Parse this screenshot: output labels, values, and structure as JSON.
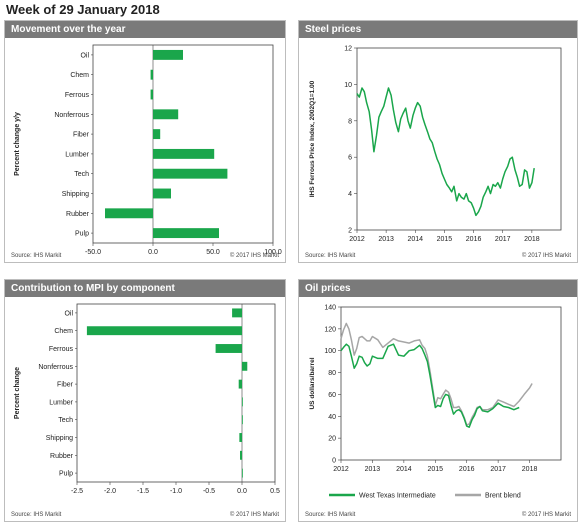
{
  "page": {
    "title": "Week of 29 January 2018"
  },
  "colors": {
    "green": "#1aa64b",
    "gray": "#a6a6a6",
    "header": "#7a7a7a"
  },
  "panels": [
    {
      "id": "p1",
      "title": "Movement over the year",
      "source": "Source: IHS Markit",
      "copyright": "© 2017 IHS Markit"
    },
    {
      "id": "p2",
      "title": "Steel prices",
      "source": "Source: IHS Markit",
      "copyright": "© 2017 IHS Markit"
    },
    {
      "id": "p3",
      "title": "Contribution  to MPI by component",
      "source": "Source: IHS Markit",
      "copyright": "© 2017 IHS Markit"
    },
    {
      "id": "p4",
      "title": "Oil  prices",
      "source": "Source: IHS Markit",
      "copyright": "© 2017 IHS Markit"
    }
  ],
  "chart_data": [
    {
      "type": "bar",
      "orientation": "horizontal",
      "title": "Movement over the year",
      "ylabel": "Percent change y/y",
      "xlim": [
        -50,
        100
      ],
      "xticks": [
        -50,
        0,
        50,
        100
      ],
      "xtick_labels": [
        "-50.0",
        "0.0",
        "50.0",
        "100.0"
      ],
      "categories": [
        "Oil",
        "Chem",
        "Ferrous",
        "Nonferrous",
        "Fiber",
        "Lumber",
        "Tech",
        "Shipping",
        "Rubber",
        "Pulp"
      ],
      "values": [
        25,
        -2,
        -2,
        21,
        6,
        51,
        62,
        15,
        -40,
        55
      ],
      "grid": false
    },
    {
      "type": "line",
      "title": "Steel prices",
      "ylabel": "IHS Ferrous Price Index, 2002Q1=1.00",
      "xlim": [
        2012,
        2019
      ],
      "xticks": [
        2012,
        2013,
        2014,
        2015,
        2016,
        2017,
        2018
      ],
      "ylim": [
        2,
        12
      ],
      "yticks": [
        2,
        4,
        6,
        8,
        10,
        12
      ],
      "series": [
        {
          "x": [
            2012.0,
            2012.08,
            2012.17,
            2012.25,
            2012.33,
            2012.42,
            2012.5,
            2012.58,
            2012.67,
            2012.75,
            2012.83,
            2012.92,
            2013.0,
            2013.08,
            2013.17,
            2013.25,
            2013.33,
            2013.42,
            2013.5,
            2013.58,
            2013.67,
            2013.75,
            2013.83,
            2013.92,
            2014.0,
            2014.08,
            2014.17,
            2014.25,
            2014.33,
            2014.42,
            2014.5,
            2014.58,
            2014.67,
            2014.75,
            2014.83,
            2014.92,
            2015.0,
            2015.08,
            2015.17,
            2015.25,
            2015.33,
            2015.42,
            2015.5,
            2015.58,
            2015.67,
            2015.75,
            2015.83,
            2015.92,
            2016.0,
            2016.08,
            2016.17,
            2016.25,
            2016.33,
            2016.42,
            2016.5,
            2016.58,
            2016.67,
            2016.75,
            2016.83,
            2016.92,
            2017.0,
            2017.08,
            2017.17,
            2017.25,
            2017.33,
            2017.42,
            2017.5,
            2017.58,
            2017.67,
            2017.75,
            2017.83,
            2017.92,
            2018.0,
            2018.08
          ],
          "values": [
            9.5,
            9.3,
            9.8,
            9.6,
            9.0,
            8.5,
            7.5,
            6.3,
            7.2,
            8.2,
            8.5,
            8.8,
            9.3,
            9.8,
            9.4,
            8.6,
            7.9,
            7.4,
            8.1,
            8.4,
            8.7,
            8.0,
            7.6,
            8.3,
            8.7,
            9.0,
            8.8,
            8.2,
            7.8,
            7.4,
            7.0,
            6.8,
            6.3,
            5.9,
            5.6,
            5.1,
            4.8,
            4.5,
            4.3,
            4.1,
            4.4,
            3.6,
            4.0,
            3.8,
            3.7,
            4.0,
            3.6,
            3.5,
            3.2,
            2.8,
            3.0,
            3.3,
            3.8,
            4.1,
            4.4,
            4.0,
            4.5,
            4.4,
            4.6,
            4.3,
            4.8,
            5.2,
            5.5,
            5.9,
            6.0,
            5.3,
            4.9,
            4.4,
            4.5,
            5.3,
            5.2,
            4.3,
            4.6,
            5.4
          ]
        }
      ],
      "grid": false
    },
    {
      "type": "bar",
      "orientation": "horizontal",
      "title": "Contribution  to MPI by component",
      "ylabel": "Percent change",
      "xlim": [
        -2.5,
        0.5
      ],
      "xticks": [
        -2.5,
        -2.0,
        -1.5,
        -1.0,
        -0.5,
        0.0,
        0.5
      ],
      "xtick_labels": [
        "-2.5",
        "-2.0",
        "-1.5",
        "-1.0",
        "-0.5",
        "0.0",
        "0.5"
      ],
      "categories": [
        "Oil",
        "Chem",
        "Ferrous",
        "Nonferrous",
        "Fiber",
        "Lumber",
        "Tech",
        "Shipping",
        "Rubber",
        "Pulp"
      ],
      "values": [
        -0.15,
        -2.35,
        -0.4,
        0.08,
        -0.05,
        0.0,
        0.01,
        -0.04,
        -0.03,
        0.0
      ],
      "grid": false
    },
    {
      "type": "line",
      "title": "Oil  prices",
      "ylabel": "US dollars/barrel",
      "xlim": [
        2012,
        2019
      ],
      "xticks": [
        2012,
        2013,
        2014,
        2015,
        2016,
        2017,
        2018
      ],
      "ylim": [
        0,
        140
      ],
      "yticks": [
        0,
        20,
        40,
        60,
        80,
        100,
        120,
        140
      ],
      "legend": "bottom",
      "series": [
        {
          "name": "West Texas Intermediate",
          "x": [
            2012.0,
            2012.08,
            2012.17,
            2012.25,
            2012.33,
            2012.42,
            2012.5,
            2012.58,
            2012.67,
            2012.75,
            2012.83,
            2012.92,
            2013.0,
            2013.17,
            2013.33,
            2013.5,
            2013.67,
            2013.83,
            2014.0,
            2014.17,
            2014.33,
            2014.5,
            2014.58,
            2014.67,
            2014.75,
            2014.83,
            2014.92,
            2015.0,
            2015.08,
            2015.17,
            2015.25,
            2015.33,
            2015.42,
            2015.5,
            2015.58,
            2015.67,
            2015.75,
            2015.83,
            2015.92,
            2016.0,
            2016.08,
            2016.17,
            2016.25,
            2016.33,
            2016.42,
            2016.5,
            2016.67,
            2016.83,
            2017.0,
            2017.17,
            2017.33,
            2017.5,
            2017.67
          ],
          "values": [
            100,
            103,
            106,
            104,
            95,
            84,
            88,
            95,
            94,
            89,
            86,
            88,
            95,
            93,
            93,
            104,
            106,
            96,
            95,
            100,
            101,
            105,
            102,
            96,
            90,
            78,
            62,
            48,
            50,
            49,
            56,
            60,
            59,
            50,
            42,
            45,
            46,
            44,
            38,
            31,
            30,
            37,
            41,
            47,
            49,
            45,
            44,
            47,
            52,
            49,
            48,
            46,
            48
          ]
        },
        {
          "name": "Brent blend",
          "x": [
            2012.0,
            2012.08,
            2012.17,
            2012.25,
            2012.33,
            2012.42,
            2012.5,
            2012.58,
            2012.67,
            2012.75,
            2012.83,
            2012.92,
            2013.0,
            2013.17,
            2013.33,
            2013.5,
            2013.67,
            2013.83,
            2014.0,
            2014.17,
            2014.33,
            2014.5,
            2014.58,
            2014.67,
            2014.75,
            2014.83,
            2014.92,
            2015.0,
            2015.08,
            2015.17,
            2015.25,
            2015.33,
            2015.42,
            2015.5,
            2015.58,
            2015.67,
            2015.75,
            2015.83,
            2015.92,
            2016.0,
            2016.08,
            2016.17,
            2016.25,
            2016.33,
            2016.42,
            2016.5,
            2016.67,
            2016.83,
            2017.0,
            2017.17,
            2017.33,
            2017.5,
            2017.67,
            2017.83,
            2018.0,
            2018.08
          ],
          "values": [
            111,
            119,
            125,
            120,
            110,
            96,
            102,
            112,
            113,
            111,
            109,
            109,
            113,
            110,
            103,
            107,
            111,
            109,
            108,
            107,
            109,
            110,
            105,
            102,
            95,
            82,
            65,
            50,
            57,
            56,
            60,
            64,
            62,
            56,
            48,
            48,
            49,
            45,
            39,
            32,
            33,
            39,
            43,
            48,
            49,
            46,
            46,
            48,
            55,
            53,
            51,
            49,
            54,
            60,
            66,
            70
          ]
        }
      ],
      "grid": false
    }
  ]
}
